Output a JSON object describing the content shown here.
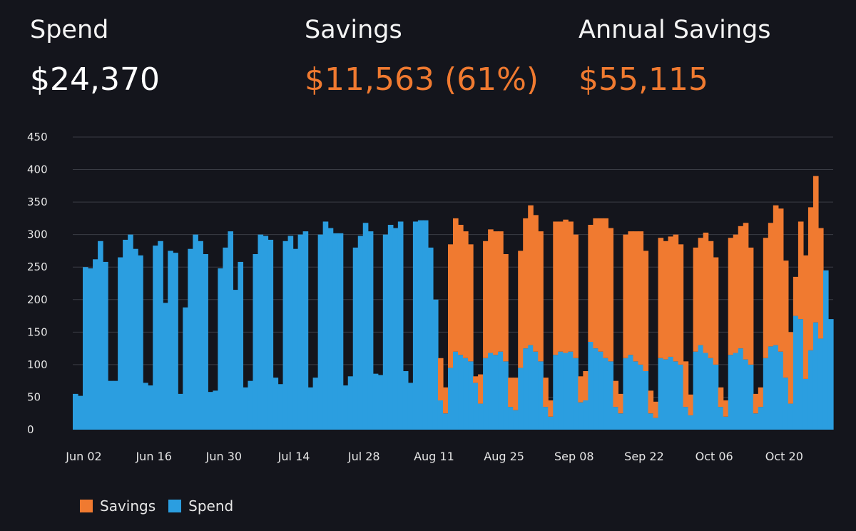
{
  "kpis": [
    {
      "label": "Spend",
      "value": "$24,370"
    },
    {
      "label": "Savings",
      "value": "$11,563 (61%)"
    },
    {
      "label": "Annual Savings",
      "value": "$55,115"
    }
  ],
  "colors": {
    "savings": "#f07a30",
    "spend": "#2b9ee0",
    "background": "#14151c",
    "grid": "#3a3c44",
    "text": "#e6e6e6"
  },
  "legend": [
    {
      "label": "Savings",
      "color": "#f07a30"
    },
    {
      "label": "Spend",
      "color": "#2b9ee0"
    }
  ],
  "chart_data": {
    "type": "bar",
    "stacked": true,
    "title": "",
    "ylim": [
      0,
      450
    ],
    "yticks": [
      0,
      50,
      100,
      150,
      200,
      250,
      300,
      350,
      400,
      450
    ],
    "xticks": [
      "Jun 02",
      "Jun 16",
      "Jun 30",
      "Jul 14",
      "Jul 28",
      "Aug 11",
      "Aug 25",
      "Sep 08",
      "Sep 22",
      "Oct 06",
      "Oct 20"
    ],
    "x_start": "Jun 02",
    "series": [
      {
        "name": "Spend",
        "values": [
          55,
          52,
          250,
          248,
          262,
          290,
          258,
          75,
          75,
          265,
          292,
          300,
          278,
          268,
          72,
          68,
          283,
          290,
          195,
          275,
          272,
          55,
          188,
          278,
          300,
          290,
          270,
          58,
          60,
          248,
          280,
          305,
          215,
          258,
          65,
          75,
          270,
          300,
          298,
          292,
          80,
          70,
          290,
          298,
          278,
          300,
          305,
          65,
          80,
          300,
          320,
          310,
          302,
          302,
          68,
          82,
          280,
          298,
          318,
          305,
          86,
          84,
          300,
          315,
          310,
          320,
          90,
          72,
          320,
          322,
          322,
          280,
          200,
          45,
          25,
          95,
          120,
          115,
          110,
          105,
          72,
          40,
          110,
          118,
          115,
          120,
          105,
          35,
          30,
          95,
          125,
          130,
          120,
          105,
          35,
          20,
          115,
          120,
          118,
          120,
          110,
          42,
          45,
          135,
          125,
          120,
          110,
          105,
          35,
          25,
          110,
          115,
          105,
          100,
          90,
          25,
          18,
          110,
          108,
          112,
          105,
          100,
          35,
          22,
          120,
          130,
          118,
          110,
          100,
          35,
          20,
          115,
          118,
          125,
          108,
          100,
          25,
          35,
          110,
          128,
          130,
          120,
          80,
          40,
          175,
          170,
          78,
          122,
          165,
          140,
          245,
          170
        ]
      },
      {
        "name": "Savings",
        "values": [
          0,
          0,
          0,
          0,
          0,
          0,
          0,
          0,
          0,
          0,
          0,
          0,
          0,
          0,
          0,
          0,
          0,
          0,
          0,
          0,
          0,
          0,
          0,
          0,
          0,
          0,
          0,
          0,
          0,
          0,
          0,
          0,
          0,
          0,
          0,
          0,
          0,
          0,
          0,
          0,
          0,
          0,
          0,
          0,
          0,
          0,
          0,
          0,
          0,
          0,
          0,
          0,
          0,
          0,
          0,
          0,
          0,
          0,
          0,
          0,
          0,
          0,
          0,
          0,
          0,
          0,
          0,
          0,
          0,
          0,
          0,
          0,
          0,
          65,
          40,
          190,
          205,
          200,
          195,
          180,
          10,
          45,
          180,
          190,
          190,
          185,
          165,
          45,
          50,
          180,
          200,
          215,
          210,
          200,
          45,
          25,
          205,
          200,
          205,
          200,
          190,
          40,
          45,
          180,
          200,
          205,
          215,
          205,
          40,
          30,
          190,
          190,
          200,
          205,
          185,
          35,
          25,
          185,
          182,
          185,
          195,
          185,
          70,
          32,
          160,
          165,
          185,
          180,
          165,
          30,
          25,
          180,
          182,
          188,
          210,
          180,
          30,
          30,
          185,
          190,
          215,
          220,
          180,
          110,
          60,
          150,
          190,
          220,
          225,
          170
        ]
      }
    ],
    "legend_position": "bottom-left"
  }
}
